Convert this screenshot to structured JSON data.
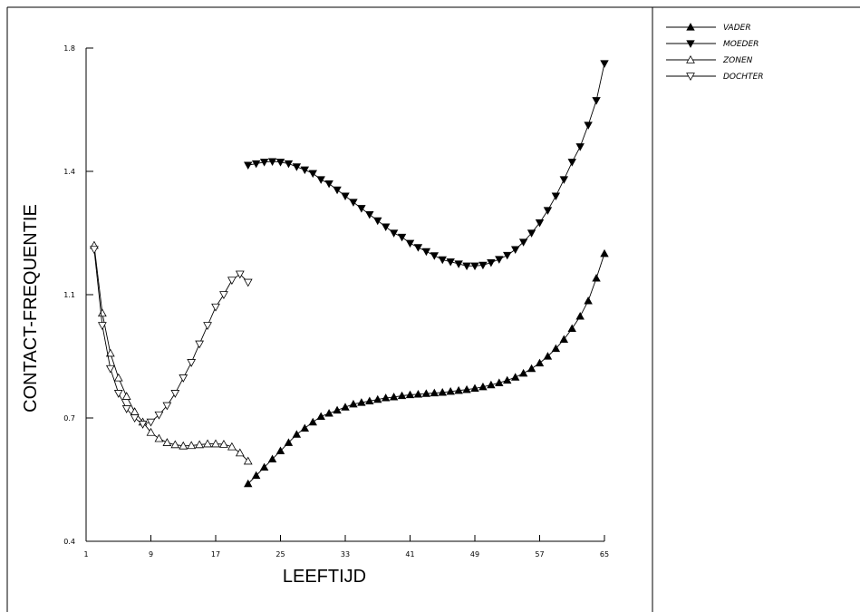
{
  "chart_data": {
    "type": "line",
    "xlabel": "LEEFTIJD",
    "ylabel": "CONTACT-FREQUENTIE",
    "xlim": [
      1,
      65
    ],
    "ylim": [
      0.4,
      1.8
    ],
    "x_ticks": [
      1,
      9,
      17,
      25,
      33,
      41,
      49,
      57,
      65
    ],
    "y_ticks": [
      0.4,
      0.7,
      1.1,
      1.4,
      1.8
    ],
    "y_tick_labels": [
      "0.4",
      "0.7",
      "1.1",
      "1.4",
      "1.8"
    ],
    "grid": false,
    "legend_position": "right panel, top",
    "series": [
      {
        "name": "VADER",
        "marker": "triangle-up-filled",
        "x": [
          21,
          22,
          23,
          24,
          25,
          26,
          27,
          28,
          29,
          30,
          31,
          32,
          33,
          34,
          35,
          36,
          37,
          38,
          39,
          40,
          41,
          42,
          43,
          44,
          45,
          46,
          47,
          48,
          49,
          50,
          51,
          52,
          53,
          54,
          55,
          56,
          57,
          58,
          59,
          60,
          61,
          62,
          63,
          64,
          65
        ],
        "y": [
          0.54,
          0.56,
          0.58,
          0.6,
          0.62,
          0.64,
          0.66,
          0.675,
          0.69,
          0.705,
          0.715,
          0.725,
          0.735,
          0.745,
          0.75,
          0.755,
          0.76,
          0.765,
          0.768,
          0.772,
          0.775,
          0.777,
          0.779,
          0.781,
          0.783,
          0.786,
          0.789,
          0.792,
          0.796,
          0.801,
          0.807,
          0.814,
          0.822,
          0.832,
          0.845,
          0.86,
          0.878,
          0.9,
          0.925,
          0.955,
          0.99,
          1.03,
          1.08,
          1.14,
          1.2
        ]
      },
      {
        "name": "MOEDER",
        "marker": "triangle-down-filled",
        "x": [
          21,
          22,
          23,
          24,
          25,
          26,
          27,
          28,
          29,
          30,
          31,
          32,
          33,
          34,
          35,
          36,
          37,
          38,
          39,
          40,
          41,
          42,
          43,
          44,
          45,
          46,
          47,
          48,
          49,
          50,
          51,
          52,
          53,
          54,
          55,
          56,
          57,
          58,
          59,
          60,
          61,
          62,
          63,
          64,
          65
        ],
        "y": [
          1.42,
          1.425,
          1.43,
          1.432,
          1.43,
          1.425,
          1.415,
          1.405,
          1.395,
          1.38,
          1.37,
          1.355,
          1.34,
          1.325,
          1.31,
          1.295,
          1.28,
          1.265,
          1.25,
          1.24,
          1.225,
          1.215,
          1.205,
          1.195,
          1.185,
          1.18,
          1.175,
          1.17,
          1.17,
          1.172,
          1.178,
          1.186,
          1.196,
          1.21,
          1.228,
          1.25,
          1.275,
          1.305,
          1.34,
          1.38,
          1.43,
          1.48,
          1.55,
          1.63,
          1.75
        ]
      },
      {
        "name": "ZONEN",
        "marker": "triangle-up-open",
        "x": [
          2,
          3,
          4,
          5,
          6,
          7,
          8,
          9,
          10,
          11,
          12,
          13,
          14,
          15,
          16,
          17,
          18,
          19,
          20,
          21
        ],
        "y": [
          1.22,
          1.04,
          0.91,
          0.83,
          0.77,
          0.72,
          0.69,
          0.665,
          0.65,
          0.64,
          0.635,
          0.632,
          0.633,
          0.635,
          0.637,
          0.637,
          0.636,
          0.63,
          0.615,
          0.595
        ]
      },
      {
        "name": "DOCHTER",
        "marker": "triangle-down-open",
        "x": [
          2,
          3,
          4,
          5,
          6,
          7,
          8,
          9,
          10,
          11,
          12,
          13,
          14,
          15,
          16,
          17,
          18,
          19,
          20,
          21
        ],
        "y": [
          1.21,
          1.0,
          0.86,
          0.78,
          0.73,
          0.7,
          0.685,
          0.69,
          0.71,
          0.74,
          0.78,
          0.83,
          0.88,
          0.94,
          1.0,
          1.06,
          1.1,
          1.135,
          1.15,
          1.13
        ]
      }
    ]
  }
}
